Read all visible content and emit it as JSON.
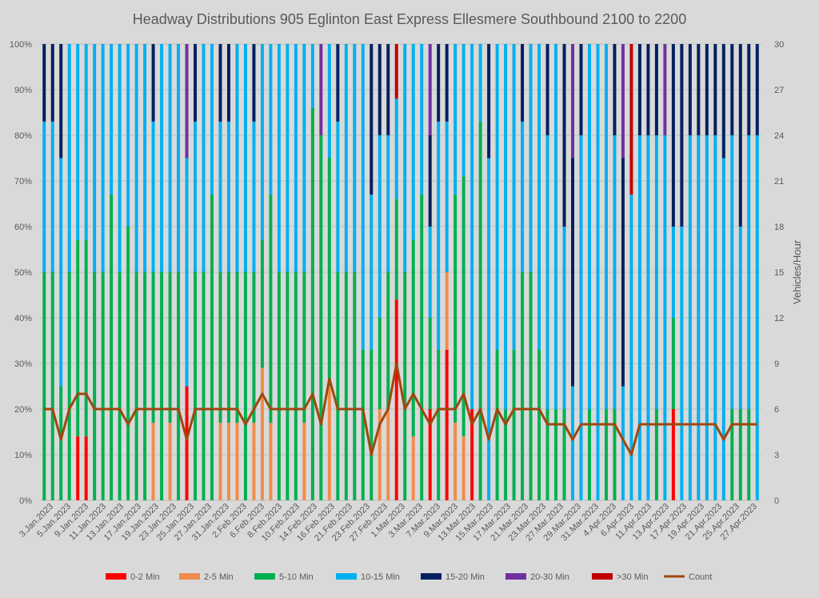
{
  "chart_data": {
    "type": "bar",
    "stacked": true,
    "normalized": true,
    "title": "Headway Distributions 905 Eglinton East Express  Ellesmere Southbound 2100 to 2200",
    "ylabel": "",
    "y2label": "Vehicles/Hour",
    "ylim": [
      0,
      100
    ],
    "y2lim": [
      0,
      30
    ],
    "y_ticks": [
      "0%",
      "10%",
      "20%",
      "30%",
      "40%",
      "50%",
      "60%",
      "70%",
      "80%",
      "90%",
      "100%"
    ],
    "y2_ticks": [
      "0",
      "3",
      "6",
      "9",
      "12",
      "15",
      "18",
      "21",
      "24",
      "27",
      "30"
    ],
    "grid": true,
    "legend_position": "bottom",
    "colors": {
      "s0": "#ff0000",
      "s1": "#f08c4b",
      "s2": "#00b050",
      "s3": "#00b0f0",
      "s4": "#002060",
      "s5": "#7030a0",
      "s6": "#c00000",
      "count": "#9e480e"
    },
    "series_names": [
      "0-2 Min",
      "2-5 Min",
      "5-10 Min",
      "10-15 Min",
      "15-20 Min",
      "20-30 Min",
      ">30 Min"
    ],
    "count_name": "Count",
    "x_tick_labels": [
      "3.Jan.2023",
      "5.Jan.2023",
      "9.Jan.2023",
      "11.Jan.2023",
      "13.Jan.2023",
      "17.Jan.2023",
      "19.Jan.2023",
      "23.Jan.2023",
      "25.Jan.2023",
      "27.Jan.2023",
      "31.Jan.2023",
      "2.Feb.2023",
      "6.Feb.2023",
      "8.Feb.2023",
      "10.Feb.2023",
      "14.Feb.2023",
      "16.Feb.2023",
      "21.Feb.2023",
      "23.Feb.2023",
      "27.Feb.2023",
      "1.Mar.2023",
      "3.Mar.2023",
      "7.Mar.2023",
      "9.Mar.2023",
      "13.Mar.2023",
      "15.Mar.2023",
      "17.Mar.2023",
      "21.Mar.2023",
      "23.Mar.2023",
      "27.Mar.2023",
      "29.Mar.2023",
      "31.Mar.2023",
      "4.Apr.2023",
      "6.Apr.2023",
      "11.Apr.2023",
      "13.Apr.2023",
      "17.Apr.2023",
      "19.Apr.2023",
      "21.Apr.2023",
      "25.Apr.2023",
      "27.Apr.2023"
    ],
    "days": [
      {
        "v": [
          0,
          0,
          50,
          33,
          17,
          0,
          0
        ],
        "count": 6
      },
      {
        "v": [
          0,
          0,
          50,
          33,
          17,
          0,
          0
        ],
        "count": 6
      },
      {
        "v": [
          0,
          0,
          25,
          50,
          25,
          0,
          0
        ],
        "count": 4
      },
      {
        "v": [
          0,
          0,
          50,
          50,
          0,
          0,
          0
        ],
        "count": 6
      },
      {
        "v": [
          14,
          0,
          43,
          43,
          0,
          0,
          0
        ],
        "count": 7
      },
      {
        "v": [
          14,
          0,
          43,
          43,
          0,
          0,
          0
        ],
        "count": 7
      },
      {
        "v": [
          0,
          0,
          50,
          50,
          0,
          0,
          0
        ],
        "count": 6
      },
      {
        "v": [
          0,
          0,
          50,
          50,
          0,
          0,
          0
        ],
        "count": 6
      },
      {
        "v": [
          0,
          0,
          67,
          33,
          0,
          0,
          0
        ],
        "count": 6
      },
      {
        "v": [
          0,
          0,
          50,
          50,
          0,
          0,
          0
        ],
        "count": 6
      },
      {
        "v": [
          0,
          0,
          60,
          40,
          0,
          0,
          0
        ],
        "count": 5
      },
      {
        "v": [
          0,
          0,
          50,
          50,
          0,
          0,
          0
        ],
        "count": 6
      },
      {
        "v": [
          0,
          0,
          50,
          50,
          0,
          0,
          0
        ],
        "count": 6
      },
      {
        "v": [
          0,
          17,
          33,
          33,
          17,
          0,
          0
        ],
        "count": 6
      },
      {
        "v": [
          0,
          0,
          50,
          50,
          0,
          0,
          0
        ],
        "count": 6
      },
      {
        "v": [
          0,
          17,
          33,
          50,
          0,
          0,
          0
        ],
        "count": 6
      },
      {
        "v": [
          0,
          0,
          50,
          50,
          0,
          0,
          0
        ],
        "count": 6
      },
      {
        "v": [
          25,
          0,
          0,
          50,
          0,
          25,
          0
        ],
        "count": 4
      },
      {
        "v": [
          0,
          0,
          50,
          33,
          17,
          0,
          0
        ],
        "count": 6
      },
      {
        "v": [
          0,
          0,
          50,
          50,
          0,
          0,
          0
        ],
        "count": 6
      },
      {
        "v": [
          0,
          0,
          67,
          33,
          0,
          0,
          0
        ],
        "count": 6
      },
      {
        "v": [
          0,
          17,
          33,
          33,
          17,
          0,
          0
        ],
        "count": 6
      },
      {
        "v": [
          0,
          17,
          33,
          33,
          17,
          0,
          0
        ],
        "count": 6
      },
      {
        "v": [
          0,
          17,
          33,
          50,
          0,
          0,
          0
        ],
        "count": 6
      },
      {
        "v": [
          0,
          0,
          50,
          50,
          0,
          0,
          0
        ],
        "count": 5
      },
      {
        "v": [
          0,
          17,
          33,
          33,
          17,
          0,
          0
        ],
        "count": 6
      },
      {
        "v": [
          0,
          29,
          28,
          43,
          0,
          0,
          0
        ],
        "count": 7
      },
      {
        "v": [
          0,
          17,
          50,
          33,
          0,
          0,
          0
        ],
        "count": 6
      },
      {
        "v": [
          0,
          0,
          50,
          50,
          0,
          0,
          0
        ],
        "count": 6
      },
      {
        "v": [
          0,
          0,
          50,
          50,
          0,
          0,
          0
        ],
        "count": 6
      },
      {
        "v": [
          0,
          0,
          50,
          50,
          0,
          0,
          0
        ],
        "count": 6
      },
      {
        "v": [
          0,
          17,
          33,
          50,
          0,
          0,
          0
        ],
        "count": 6
      },
      {
        "v": [
          0,
          0,
          86,
          14,
          0,
          0,
          0
        ],
        "count": 7
      },
      {
        "v": [
          0,
          0,
          80,
          0,
          0,
          20,
          0
        ],
        "count": 5
      },
      {
        "v": [
          0,
          25,
          50,
          25,
          0,
          0,
          0
        ],
        "count": 8
      },
      {
        "v": [
          0,
          0,
          50,
          33,
          17,
          0,
          0
        ],
        "count": 6
      },
      {
        "v": [
          0,
          0,
          50,
          50,
          0,
          0,
          0
        ],
        "count": 6
      },
      {
        "v": [
          0,
          0,
          50,
          50,
          0,
          0,
          0
        ],
        "count": 6
      },
      {
        "v": [
          0,
          0,
          33,
          67,
          0,
          0,
          0
        ],
        "count": 6
      },
      {
        "v": [
          0,
          0,
          33,
          34,
          33,
          0,
          0
        ],
        "count": 3
      },
      {
        "v": [
          0,
          20,
          20,
          40,
          20,
          0,
          0
        ],
        "count": 5
      },
      {
        "v": [
          0,
          20,
          30,
          30,
          20,
          0,
          0
        ],
        "count": 6
      },
      {
        "v": [
          44,
          0,
          22,
          22,
          0,
          0,
          12
        ],
        "count": 9
      },
      {
        "v": [
          0,
          0,
          50,
          50,
          0,
          0,
          0
        ],
        "count": 6
      },
      {
        "v": [
          0,
          14,
          43,
          43,
          0,
          0,
          0
        ],
        "count": 7
      },
      {
        "v": [
          0,
          0,
          67,
          33,
          0,
          0,
          0
        ],
        "count": 6
      },
      {
        "v": [
          20,
          0,
          20,
          20,
          20,
          20,
          0
        ],
        "count": 5
      },
      {
        "v": [
          0,
          0,
          33,
          50,
          17,
          0,
          0
        ],
        "count": 6
      },
      {
        "v": [
          33,
          17,
          0,
          33,
          17,
          0,
          0
        ],
        "count": 6
      },
      {
        "v": [
          0,
          17,
          50,
          33,
          0,
          0,
          0
        ],
        "count": 6
      },
      {
        "v": [
          0,
          14,
          57,
          29,
          0,
          0,
          0
        ],
        "count": 7
      },
      {
        "v": [
          20,
          0,
          0,
          80,
          0,
          0,
          0
        ],
        "count": 5
      },
      {
        "v": [
          0,
          0,
          83,
          17,
          0,
          0,
          0
        ],
        "count": 6
      },
      {
        "v": [
          0,
          0,
          0,
          75,
          25,
          0,
          0
        ],
        "count": 4
      },
      {
        "v": [
          0,
          0,
          33,
          67,
          0,
          0,
          0
        ],
        "count": 6
      },
      {
        "v": [
          0,
          0,
          20,
          80,
          0,
          0,
          0
        ],
        "count": 5
      },
      {
        "v": [
          0,
          0,
          33,
          67,
          0,
          0,
          0
        ],
        "count": 6
      },
      {
        "v": [
          0,
          0,
          50,
          33,
          17,
          0,
          0
        ],
        "count": 6
      },
      {
        "v": [
          0,
          0,
          50,
          50,
          0,
          0,
          0
        ],
        "count": 6
      },
      {
        "v": [
          0,
          0,
          33,
          67,
          0,
          0,
          0
        ],
        "count": 6
      },
      {
        "v": [
          0,
          0,
          20,
          60,
          20,
          0,
          0
        ],
        "count": 5
      },
      {
        "v": [
          0,
          0,
          20,
          80,
          0,
          0,
          0
        ],
        "count": 5
      },
      {
        "v": [
          0,
          0,
          20,
          40,
          40,
          0,
          0
        ],
        "count": 5
      },
      {
        "v": [
          0,
          0,
          0,
          25,
          50,
          25,
          0
        ],
        "count": 4
      },
      {
        "v": [
          0,
          0,
          0,
          80,
          20,
          0,
          0
        ],
        "count": 5
      },
      {
        "v": [
          0,
          0,
          20,
          80,
          0,
          0,
          0
        ],
        "count": 5
      },
      {
        "v": [
          0,
          0,
          0,
          100,
          0,
          0,
          0
        ],
        "count": 5
      },
      {
        "v": [
          0,
          0,
          20,
          80,
          0,
          0,
          0
        ],
        "count": 5
      },
      {
        "v": [
          0,
          0,
          20,
          60,
          20,
          0,
          0
        ],
        "count": 5
      },
      {
        "v": [
          0,
          0,
          0,
          25,
          50,
          25,
          0
        ],
        "count": 4
      },
      {
        "v": [
          0,
          0,
          0,
          67,
          0,
          0,
          33
        ],
        "count": 3
      },
      {
        "v": [
          0,
          0,
          0,
          80,
          20,
          0,
          0
        ],
        "count": 5
      },
      {
        "v": [
          0,
          0,
          0,
          80,
          20,
          0,
          0
        ],
        "count": 5
      },
      {
        "v": [
          0,
          0,
          20,
          60,
          20,
          0,
          0
        ],
        "count": 5
      },
      {
        "v": [
          0,
          0,
          0,
          80,
          0,
          20,
          0
        ],
        "count": 5
      },
      {
        "v": [
          20,
          0,
          20,
          20,
          40,
          0,
          0
        ],
        "count": 5
      },
      {
        "v": [
          0,
          0,
          0,
          60,
          40,
          0,
          0
        ],
        "count": 5
      },
      {
        "v": [
          0,
          0,
          0,
          80,
          20,
          0,
          0
        ],
        "count": 5
      },
      {
        "v": [
          0,
          0,
          0,
          80,
          20,
          0,
          0
        ],
        "count": 5
      },
      {
        "v": [
          0,
          0,
          0,
          80,
          20,
          0,
          0
        ],
        "count": 5
      },
      {
        "v": [
          0,
          0,
          0,
          80,
          20,
          0,
          0
        ],
        "count": 5
      },
      {
        "v": [
          0,
          0,
          0,
          75,
          25,
          0,
          0
        ],
        "count": 4
      },
      {
        "v": [
          0,
          0,
          20,
          60,
          20,
          0,
          0
        ],
        "count": 5
      },
      {
        "v": [
          0,
          0,
          20,
          40,
          40,
          0,
          0
        ],
        "count": 5
      },
      {
        "v": [
          0,
          0,
          20,
          60,
          20,
          0,
          0
        ],
        "count": 5
      },
      {
        "v": [
          0,
          0,
          0,
          80,
          20,
          0,
          0
        ],
        "count": 5
      }
    ]
  }
}
